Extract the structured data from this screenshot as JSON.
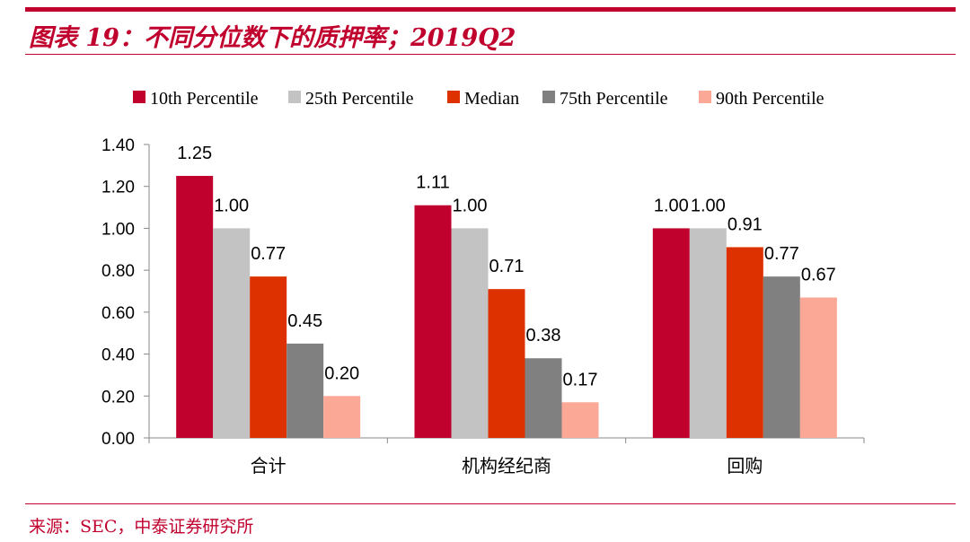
{
  "header": {
    "title": "图表 19：不同分位数下的质押率；2019Q2",
    "source": "来源：SEC，中泰证券研究所"
  },
  "colors": {
    "accent": "#c0002d"
  },
  "chart_data": {
    "type": "bar",
    "categories": [
      "合计",
      "机构经纪商",
      "回购"
    ],
    "series": [
      {
        "name": "10th Percentile",
        "color": "#c0002d",
        "values": [
          1.25,
          1.11,
          1.0
        ]
      },
      {
        "name": "25th Percentile",
        "color": "#c3c3c3",
        "values": [
          1.0,
          1.0,
          1.0
        ]
      },
      {
        "name": "Median",
        "color": "#dd3100",
        "values": [
          0.77,
          0.71,
          0.91
        ]
      },
      {
        "name": "75th Percentile",
        "color": "#808080",
        "values": [
          0.45,
          0.38,
          0.77
        ]
      },
      {
        "name": "90th Percentile",
        "color": "#fba897",
        "values": [
          0.2,
          0.17,
          0.67
        ]
      }
    ],
    "ylim": [
      0,
      1.4
    ],
    "yticks": [
      "0.00",
      "0.20",
      "0.40",
      "0.60",
      "0.80",
      "1.00",
      "1.20",
      "1.40"
    ],
    "data_labels": [
      [
        "1.25",
        "1.00",
        "0.77",
        "0.45",
        "0.20"
      ],
      [
        "1.11",
        "1.00",
        "0.71",
        "0.38",
        "0.17"
      ],
      [
        "1.00",
        "1.00",
        "0.91",
        "0.77",
        "0.67"
      ]
    ],
    "grid": false,
    "legend_position": "top"
  }
}
